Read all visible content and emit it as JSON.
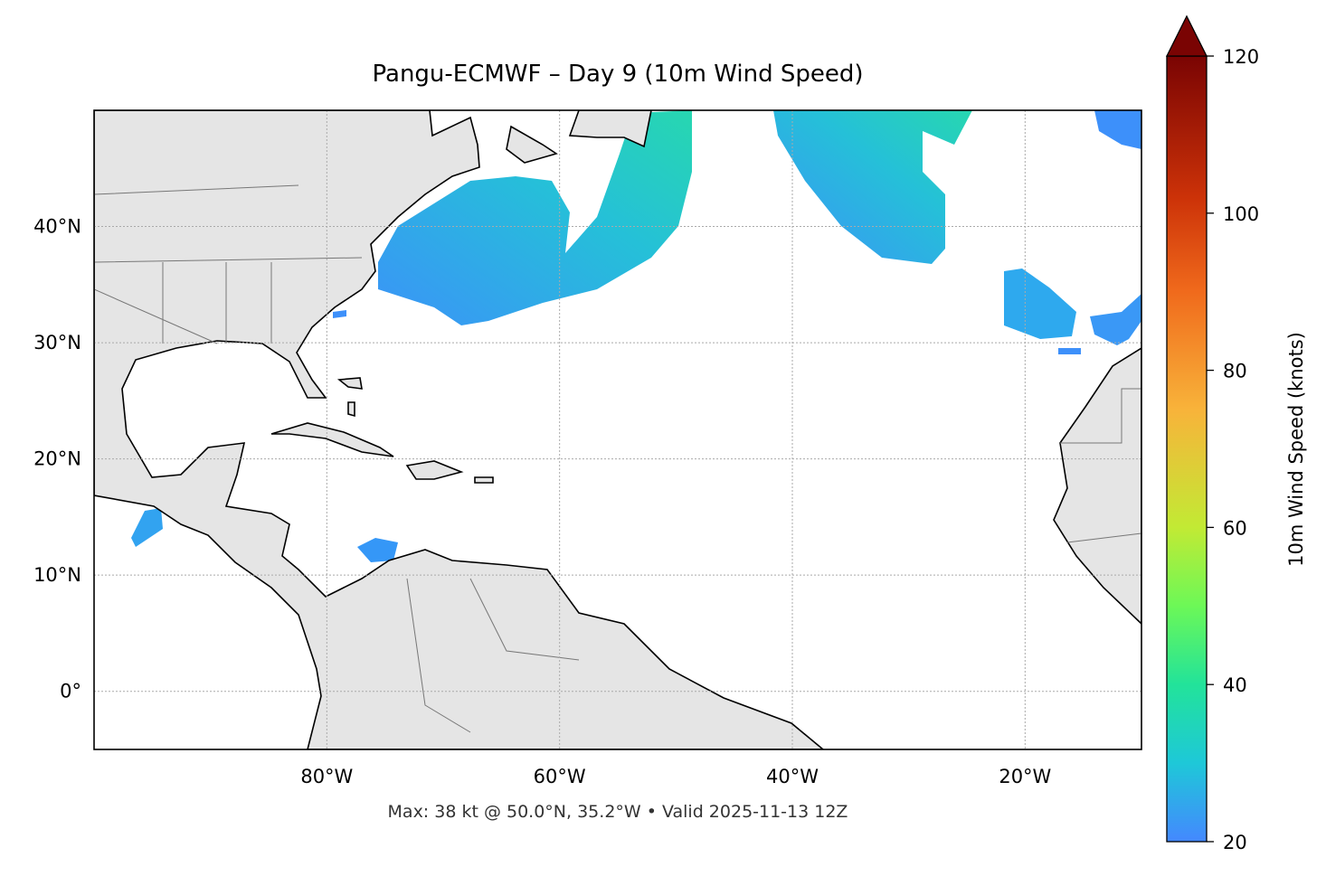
{
  "title": "Pangu-ECMWF – Day 9 (10m Wind Speed)",
  "footer": "Max: 38 kt @ 50.0°N, 35.2°W • Valid 2025-11-13 12Z",
  "map": {
    "lon_range": [
      -100,
      -10
    ],
    "lat_range": [
      -5,
      50
    ],
    "lat_ticks": [
      {
        "value": 0,
        "label": "0°"
      },
      {
        "value": 10,
        "label": "10°N"
      },
      {
        "value": 20,
        "label": "20°N"
      },
      {
        "value": 30,
        "label": "30°N"
      },
      {
        "value": 40,
        "label": "40°N"
      }
    ],
    "lon_ticks": [
      {
        "value": -80,
        "label": "80°W"
      },
      {
        "value": -60,
        "label": "60°W"
      },
      {
        "value": -40,
        "label": "40°W"
      },
      {
        "value": -20,
        "label": "20°W"
      }
    ]
  },
  "colorbar": {
    "label": "10m Wind Speed (knots)",
    "range": [
      20,
      120
    ],
    "ticks": [
      20,
      40,
      60,
      80,
      100,
      120
    ]
  }
}
